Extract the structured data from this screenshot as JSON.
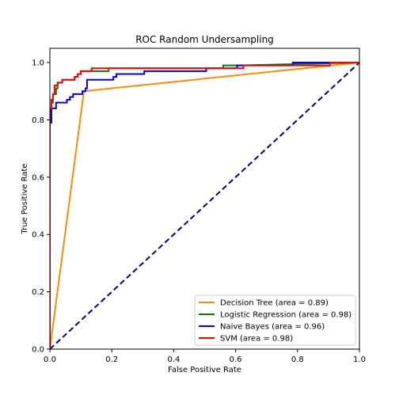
{
  "chart_data": {
    "type": "line",
    "title": "ROC Random Undersampling",
    "xlabel": "False Positive Rate",
    "ylabel": "True Positive Rate",
    "xlim": [
      0.0,
      1.0
    ],
    "ylim": [
      0.0,
      1.05
    ],
    "xticks": [
      "0.0",
      "0.2",
      "0.4",
      "0.6",
      "0.8",
      "1.0"
    ],
    "yticks": [
      "0.0",
      "0.2",
      "0.4",
      "0.6",
      "0.8",
      "1.0"
    ],
    "grid": false,
    "legend_position": "lower right",
    "chance_line": {
      "x": [
        0.0,
        1.0
      ],
      "y": [
        0.0,
        1.0
      ],
      "color": "#000080",
      "style": "dashed"
    },
    "series": [
      {
        "name": "Decision Tree (area = 0.89)",
        "color": "#ff8c00",
        "x": [
          0.0,
          0.11,
          1.0
        ],
        "y": [
          0.0,
          0.9,
          1.0
        ]
      },
      {
        "name": "Logistic Regression (area = 0.98)",
        "color": "#008000",
        "x": [
          0.0,
          0.0,
          0.005,
          0.005,
          0.01,
          0.01,
          0.02,
          0.02,
          0.025,
          0.025,
          0.04,
          0.04,
          0.08,
          0.08,
          0.09,
          0.09,
          0.1,
          0.1,
          0.12,
          0.12,
          0.19,
          0.19,
          0.56,
          0.56,
          0.61,
          0.61,
          1.0
        ],
        "y": [
          0.0,
          0.82,
          0.82,
          0.86,
          0.86,
          0.89,
          0.89,
          0.91,
          0.91,
          0.93,
          0.93,
          0.94,
          0.94,
          0.95,
          0.95,
          0.96,
          0.96,
          0.97,
          0.97,
          0.97,
          0.97,
          0.98,
          0.98,
          0.99,
          0.99,
          0.99,
          1.0
        ]
      },
      {
        "name": "Naive Bayes (area = 0.96)",
        "color": "#0000ff",
        "x": [
          0.0,
          0.0,
          0.005,
          0.005,
          0.02,
          0.02,
          0.055,
          0.055,
          0.065,
          0.065,
          0.075,
          0.075,
          0.105,
          0.105,
          0.115,
          0.115,
          0.12,
          0.12,
          0.205,
          0.205,
          0.215,
          0.215,
          0.305,
          0.305,
          0.505,
          0.505,
          0.605,
          0.605,
          0.785,
          0.785,
          0.91,
          0.91,
          1.0
        ],
        "y": [
          0.0,
          0.79,
          0.79,
          0.84,
          0.84,
          0.86,
          0.86,
          0.87,
          0.87,
          0.88,
          0.88,
          0.89,
          0.89,
          0.9,
          0.9,
          0.91,
          0.91,
          0.94,
          0.94,
          0.95,
          0.95,
          0.96,
          0.96,
          0.97,
          0.97,
          0.98,
          0.98,
          0.99,
          0.99,
          1.0,
          1.0,
          1.0,
          1.0
        ]
      },
      {
        "name": "SVM (area = 0.98)",
        "color": "#ff0000",
        "x": [
          0.0,
          0.0,
          0.005,
          0.005,
          0.01,
          0.01,
          0.015,
          0.015,
          0.025,
          0.025,
          0.04,
          0.04,
          0.08,
          0.08,
          0.09,
          0.09,
          0.1,
          0.1,
          0.135,
          0.135,
          0.625,
          0.625,
          0.905,
          0.905,
          1.0
        ],
        "y": [
          0.0,
          0.84,
          0.84,
          0.87,
          0.87,
          0.89,
          0.89,
          0.92,
          0.92,
          0.93,
          0.93,
          0.94,
          0.94,
          0.95,
          0.95,
          0.96,
          0.96,
          0.97,
          0.97,
          0.98,
          0.98,
          0.99,
          0.99,
          1.0,
          1.0
        ]
      }
    ]
  }
}
